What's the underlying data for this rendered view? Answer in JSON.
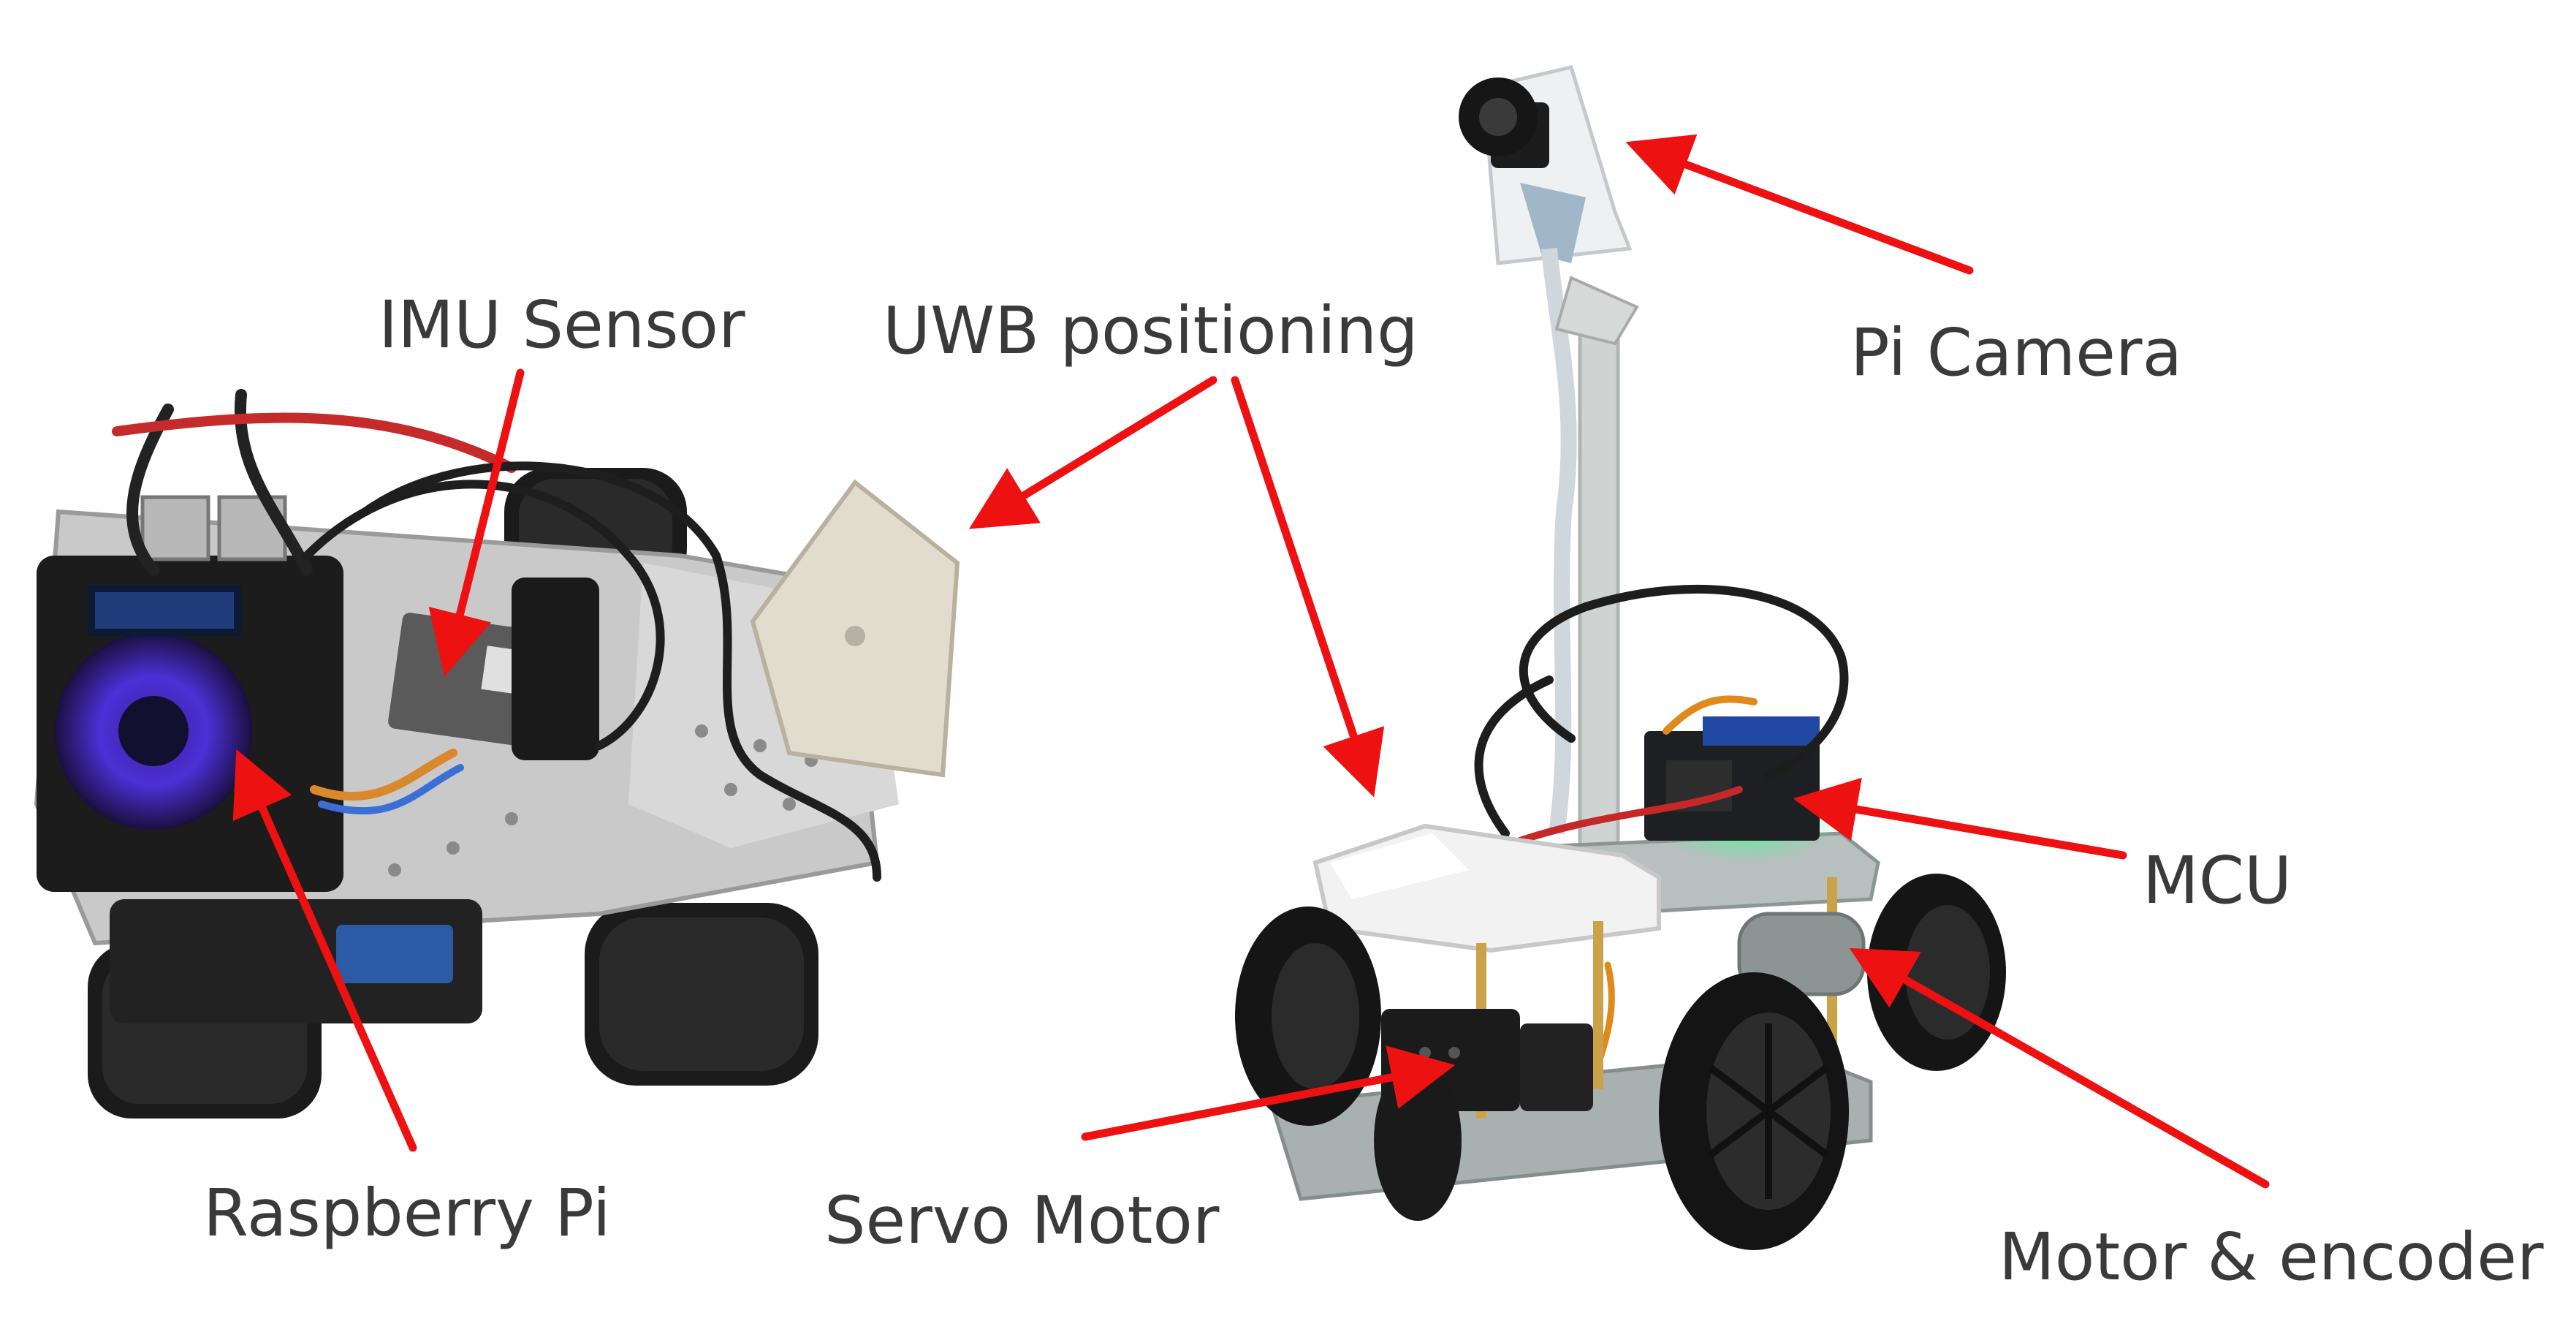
{
  "labels": {
    "imu_sensor": "IMU Sensor",
    "uwb_positioning": "UWB positioning",
    "pi_camera": "Pi Camera",
    "mcu": "MCU",
    "raspberry_pi": "Raspberry Pi",
    "servo_motor": "Servo Motor",
    "motor_encoder": "Motor & encoder"
  },
  "colors": {
    "arrow": "#ee1111",
    "label_text": "#3a3a3a",
    "background": "#ffffff"
  }
}
